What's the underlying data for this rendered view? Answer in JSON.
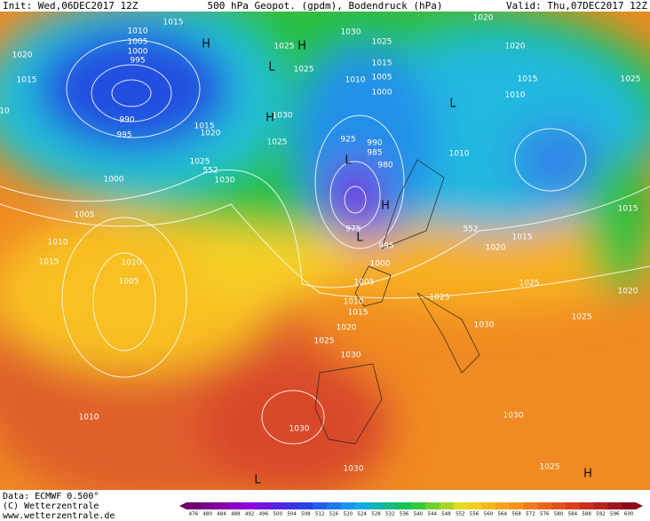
{
  "header": {
    "init": "Init: Wed,06DEC2017 12Z",
    "title": "500 hPa Geopot. (gpdm), Bodendruck (hPa)",
    "valid": "Valid: Thu,07DEC2017 12Z"
  },
  "footer": {
    "data": "Data: ECMWF  0.500°",
    "copyright": "(C) Wetterzentrale",
    "url": "www.wetterzentrale.de"
  },
  "isobar_labels": [
    "1015",
    "1010",
    "1005",
    "1000",
    "995",
    "1020",
    "1015",
    "10",
    "990",
    "995",
    "1015",
    "1020",
    "1025",
    "552",
    "1030",
    "1000",
    "1005",
    "1010",
    "1015",
    "1010",
    "1005",
    "1010",
    "1025",
    "1025",
    "1030",
    "1025",
    "1015",
    "1010",
    "1005",
    "1000",
    "1030",
    "1025",
    "925",
    "990",
    "985",
    "980",
    "975",
    "995",
    "1000",
    "1005",
    "1010",
    "1015",
    "1020",
    "1025",
    "1030",
    "1030",
    "1030",
    "1020",
    "1020",
    "1015",
    "1010",
    "1010",
    "1025",
    "1015",
    "552",
    "1020",
    "1015",
    "1025",
    "1030",
    "1025",
    "1020",
    "1025",
    "1030",
    "1025"
  ],
  "pressure_centers": [
    "H",
    "H",
    "L",
    "H",
    "L",
    "H",
    "L",
    "L",
    "H",
    "L"
  ],
  "colorbar": {
    "ticks": [
      476,
      480,
      484,
      488,
      492,
      496,
      500,
      504,
      508,
      512,
      516,
      520,
      524,
      528,
      532,
      536,
      540,
      544,
      548,
      552,
      556,
      560,
      564,
      568,
      572,
      576,
      580,
      584,
      588,
      592,
      596,
      600
    ]
  }
}
